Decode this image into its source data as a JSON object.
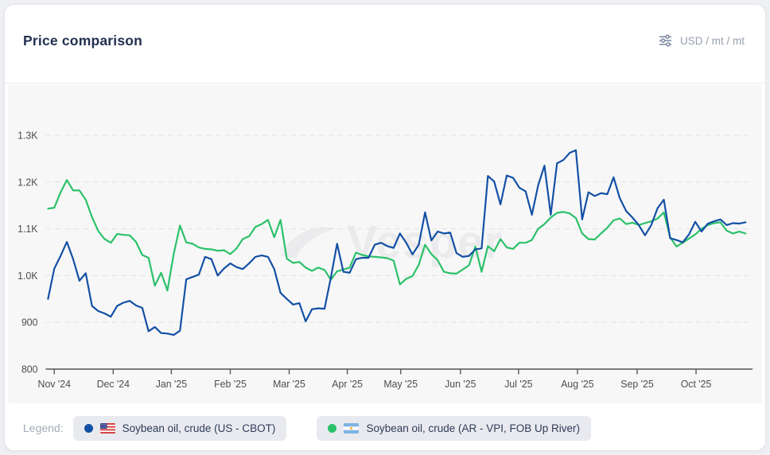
{
  "header": {
    "title": "Price comparison",
    "unit": "USD / mt / mt"
  },
  "watermark": "Vesper",
  "legend": {
    "label": "Legend:"
  },
  "chart_data": {
    "type": "line",
    "title": "Price comparison",
    "unit": "USD / mt / mt",
    "grid": "horizontal-dashed",
    "legend_position": "bottom",
    "y_range": [
      800,
      1300
    ],
    "y_ticks": [
      {
        "value": 1300,
        "label": "1.3K"
      },
      {
        "value": 1200,
        "label": "1.2K"
      },
      {
        "value": 1100,
        "label": "1.1K"
      },
      {
        "value": 1000,
        "label": "1.0K"
      },
      {
        "value": 900,
        "label": "900"
      },
      {
        "value": 800,
        "label": "800"
      }
    ],
    "x_tick_labels": [
      "Nov '24",
      "Dec '24",
      "Jan '25",
      "Feb '25",
      "Mar '25",
      "Apr '25",
      "May '25",
      "Jun '25",
      "Jul '25",
      "Aug '25",
      "Sep '25",
      "Oct '25"
    ],
    "series": [
      {
        "name": "Soybean oil, crude (US - CBOT)",
        "country": "US",
        "color": "#134fa5",
        "values": [
          950,
          1015,
          1042,
          1072,
          1035,
          989,
          1005,
          935,
          924,
          919,
          912,
          935,
          942,
          946,
          936,
          931,
          881,
          890,
          877,
          876,
          873,
          882,
          992,
          997,
          1002,
          1040,
          1035,
          1000,
          1015,
          1026,
          1018,
          1014,
          1026,
          1040,
          1043,
          1040,
          1014,
          963,
          950,
          938,
          941,
          902,
          928,
          930,
          929,
          995,
          1068,
          1008,
          1006,
          1035,
          1038,
          1038,
          1066,
          1070,
          1063,
          1059,
          1090,
          1070,
          1045,
          1066,
          1135,
          1075,
          1094,
          1090,
          1092,
          1048,
          1040,
          1042,
          1056,
          1058,
          1213,
          1201,
          1152,
          1214,
          1209,
          1188,
          1180,
          1130,
          1193,
          1235,
          1130,
          1240,
          1247,
          1262,
          1268,
          1120,
          1178,
          1170,
          1176,
          1174,
          1210,
          1165,
          1138,
          1124,
          1108,
          1086,
          1108,
          1144,
          1162,
          1080,
          1076,
          1071,
          1088,
          1115,
          1094,
          1111,
          1116,
          1120,
          1108,
          1112,
          1111,
          1114
        ]
      },
      {
        "name": "Soybean oil, crude (AR - VPI, FOB Up River)",
        "country": "AR",
        "color": "#2bc169",
        "values": [
          1143,
          1145,
          1178,
          1204,
          1182,
          1182,
          1162,
          1125,
          1095,
          1078,
          1070,
          1089,
          1087,
          1086,
          1072,
          1044,
          1038,
          978,
          1006,
          968,
          1046,
          1107,
          1071,
          1068,
          1060,
          1057,
          1056,
          1053,
          1054,
          1046,
          1058,
          1078,
          1084,
          1104,
          1110,
          1119,
          1082,
          1119,
          1036,
          1027,
          1029,
          1017,
          1010,
          1017,
          1012,
          991,
          1009,
          1013,
          1017,
          1049,
          1044,
          1041,
          1040,
          1039,
          1037,
          1032,
          981,
          993,
          999,
          1023,
          1066,
          1046,
          1033,
          1008,
          1005,
          1004,
          1013,
          1022,
          1062,
          1008,
          1063,
          1052,
          1078,
          1060,
          1057,
          1070,
          1070,
          1076,
          1100,
          1110,
          1124,
          1134,
          1136,
          1133,
          1123,
          1090,
          1078,
          1077,
          1090,
          1102,
          1118,
          1122,
          1110,
          1113,
          1108,
          1112,
          1116,
          1122,
          1135,
          1082,
          1062,
          1070,
          1079,
          1088,
          1100,
          1108,
          1112,
          1114,
          1096,
          1090,
          1094,
          1090
        ]
      }
    ]
  }
}
